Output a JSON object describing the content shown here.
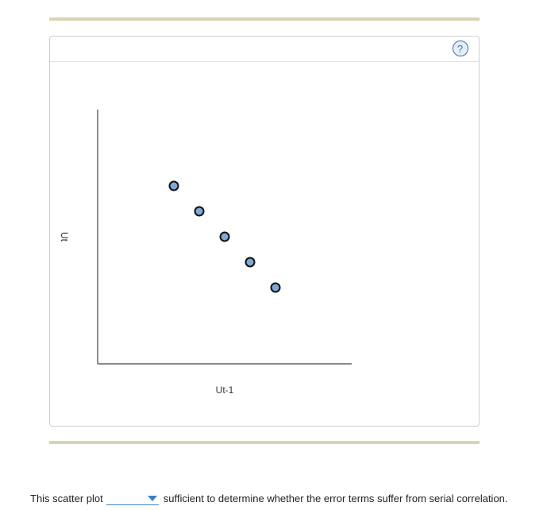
{
  "chart_data": {
    "type": "scatter",
    "xlabel": "Ut-1",
    "ylabel": "Ut",
    "xlim": [
      0,
      10
    ],
    "ylim": [
      0,
      10
    ],
    "ticks": false,
    "grid": false,
    "points": [
      {
        "x": 3,
        "y": 7
      },
      {
        "x": 4,
        "y": 6
      },
      {
        "x": 5,
        "y": 5
      },
      {
        "x": 6,
        "y": 4
      },
      {
        "x": 7,
        "y": 3
      }
    ],
    "marker_fill": "#7fa9d5",
    "marker_stroke": "#111111",
    "axis_color": "#8a8a8a"
  },
  "help": {
    "icon": "question-mark-icon",
    "glyph": "?"
  },
  "question": {
    "before": "This scatter plot",
    "answer_value": "",
    "after": "sufficient to determine whether the error terms suffer from serial correlation."
  },
  "colors": {
    "accent": "#3f7fc1",
    "rule": "#d9d4b1"
  }
}
